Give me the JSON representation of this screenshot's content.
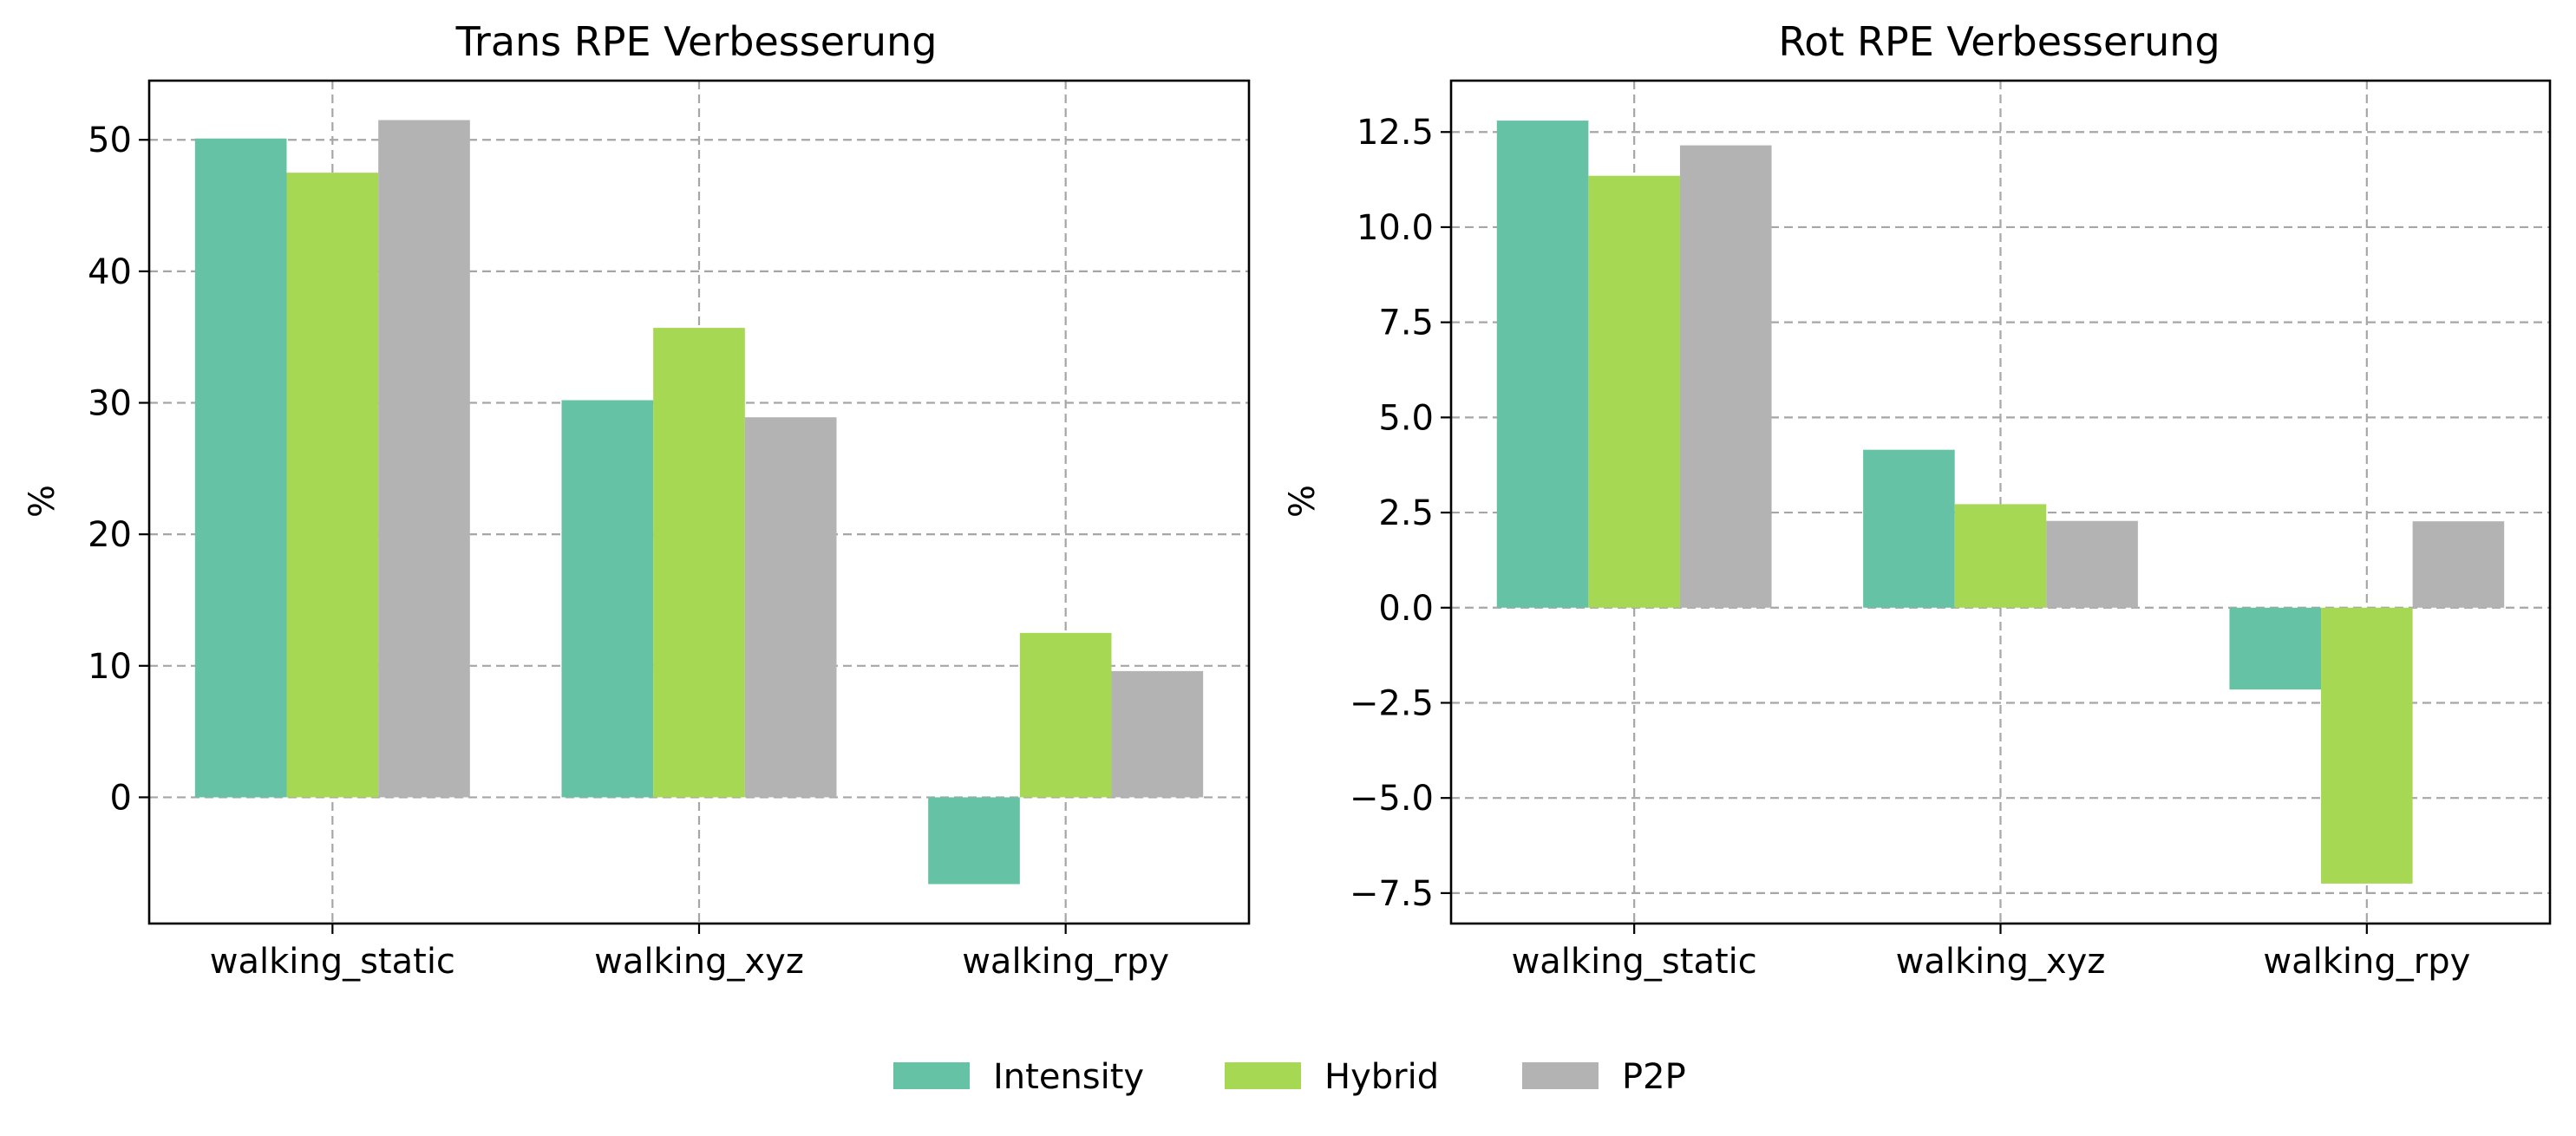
{
  "legend": {
    "items": [
      {
        "label": "Intensity",
        "color": "#66c2a5"
      },
      {
        "label": "Hybrid",
        "color": "#a6d854"
      },
      {
        "label": "P2P",
        "color": "#b3b3b3"
      }
    ],
    "placement": "bottom-center"
  },
  "chart_data": [
    {
      "type": "bar",
      "title": "Trans RPE Verbesserung",
      "xlabel": "",
      "ylabel": "%",
      "categories": [
        "walking_static",
        "walking_xyz",
        "walking_rpy"
      ],
      "series": [
        {
          "name": "Intensity",
          "values": [
            50.1,
            30.2,
            -6.6
          ]
        },
        {
          "name": "Hybrid",
          "values": [
            47.5,
            35.7,
            12.5
          ]
        },
        {
          "name": "P2P",
          "values": [
            51.5,
            28.9,
            9.6
          ]
        }
      ],
      "ylim": [
        -9.6,
        54.5
      ],
      "yticks": [
        0,
        10,
        20,
        30,
        40,
        50
      ],
      "ytick_labels": [
        "0",
        "10",
        "20",
        "30",
        "40",
        "50"
      ],
      "grid": true
    },
    {
      "type": "bar",
      "title": "Rot RPE Verbesserung",
      "xlabel": "",
      "ylabel": "%",
      "categories": [
        "walking_static",
        "walking_xyz",
        "walking_rpy"
      ],
      "series": [
        {
          "name": "Intensity",
          "values": [
            12.8,
            4.15,
            -2.15
          ]
        },
        {
          "name": "Hybrid",
          "values": [
            11.35,
            2.72,
            -7.25
          ]
        },
        {
          "name": "P2P",
          "values": [
            12.15,
            2.28,
            2.27
          ]
        }
      ],
      "ylim": [
        -8.3,
        13.85
      ],
      "yticks": [
        -7.5,
        -5.0,
        -2.5,
        0.0,
        2.5,
        5.0,
        7.5,
        10.0,
        12.5
      ],
      "ytick_labels": [
        "−7.5",
        "−5.0",
        "−2.5",
        "0.0",
        "2.5",
        "5.0",
        "7.5",
        "10.0",
        "12.5"
      ],
      "grid": true
    }
  ]
}
